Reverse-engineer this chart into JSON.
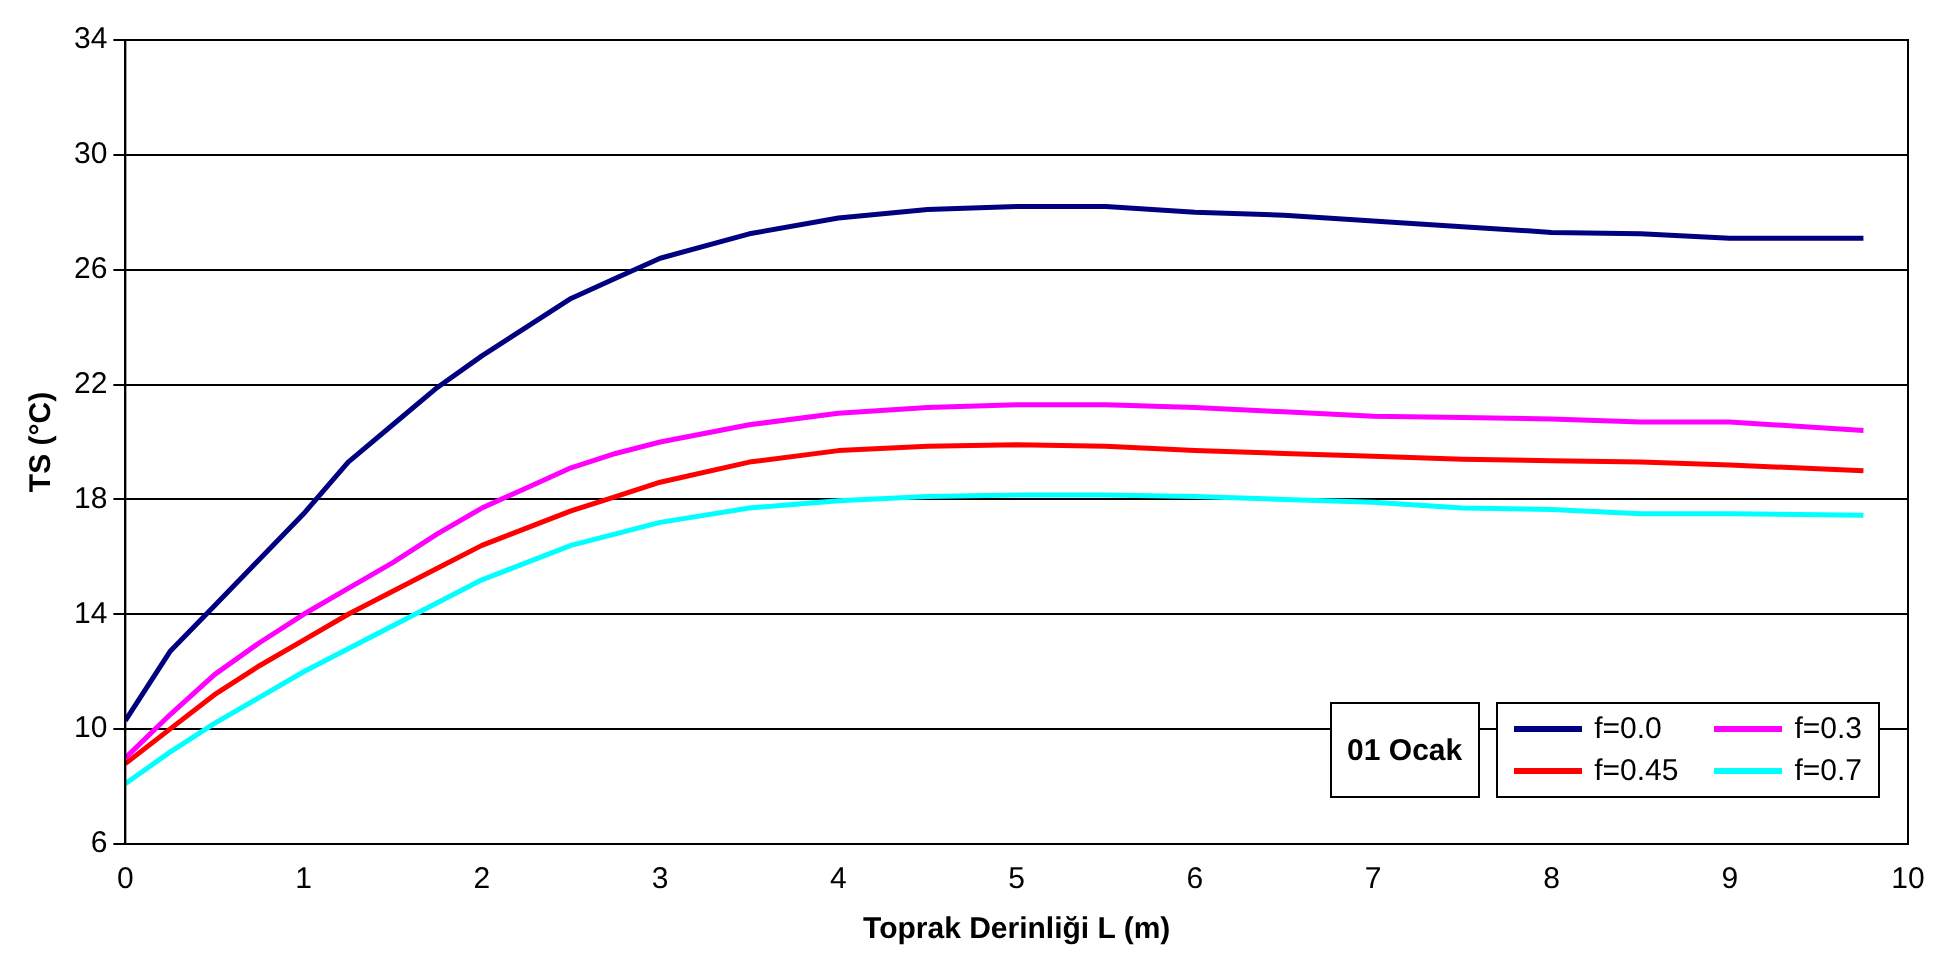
{
  "chart_data": {
    "type": "line",
    "xlabel": "Toprak Derinliği L (m)",
    "ylabel": "TS (°C)",
    "annotations": [
      "01 Ocak"
    ],
    "x": [
      0,
      0.25,
      0.5,
      0.75,
      1,
      1.25,
      1.5,
      1.75,
      2,
      2.25,
      2.5,
      2.75,
      3,
      3.5,
      4,
      4.5,
      5,
      5.5,
      6,
      6.5,
      7,
      7.5,
      8,
      8.5,
      9,
      9.75
    ],
    "series": [
      {
        "name": "f=0.0",
        "color": "#000080",
        "values": [
          10.3,
          12.7,
          14.3,
          15.9,
          17.5,
          19.3,
          20.6,
          21.9,
          23.0,
          24.0,
          25.0,
          25.7,
          26.4,
          27.25,
          27.8,
          28.1,
          28.2,
          28.2,
          28.0,
          27.9,
          27.7,
          27.5,
          27.3,
          27.25,
          27.1,
          27.1
        ]
      },
      {
        "name": "f=0.3",
        "color": "#ff00ff",
        "values": [
          9.0,
          10.5,
          11.9,
          13.0,
          14.0,
          14.9,
          15.8,
          16.8,
          17.7,
          18.4,
          19.1,
          19.6,
          20.0,
          20.6,
          21.0,
          21.2,
          21.3,
          21.3,
          21.2,
          21.05,
          20.9,
          20.85,
          20.8,
          20.7,
          20.7,
          20.4
        ]
      },
      {
        "name": "f=0.45",
        "color": "#ff0000",
        "values": [
          8.8,
          10.0,
          11.2,
          12.2,
          13.1,
          14.0,
          14.8,
          15.6,
          16.4,
          17.0,
          17.6,
          18.1,
          18.6,
          19.3,
          19.7,
          19.85,
          19.9,
          19.85,
          19.7,
          19.6,
          19.5,
          19.4,
          19.35,
          19.3,
          19.2,
          19.0
        ]
      },
      {
        "name": "f=0.7",
        "color": "#00ffff",
        "values": [
          8.1,
          9.2,
          10.2,
          11.1,
          12.0,
          12.8,
          13.6,
          14.4,
          15.2,
          15.8,
          16.4,
          16.8,
          17.2,
          17.7,
          17.95,
          18.1,
          18.15,
          18.15,
          18.1,
          18.0,
          17.9,
          17.7,
          17.65,
          17.5,
          17.5,
          17.45
        ]
      }
    ],
    "xlim": [
      0,
      10
    ],
    "xticks": [
      0,
      1,
      2,
      3,
      4,
      5,
      6,
      7,
      8,
      9,
      10
    ],
    "ylim": [
      6,
      34
    ],
    "yticks": [
      6,
      10,
      14,
      18,
      22,
      26,
      30,
      34
    ],
    "grid": "y",
    "legend": "bottom right",
    "marker": "none",
    "line_style": "solid"
  }
}
